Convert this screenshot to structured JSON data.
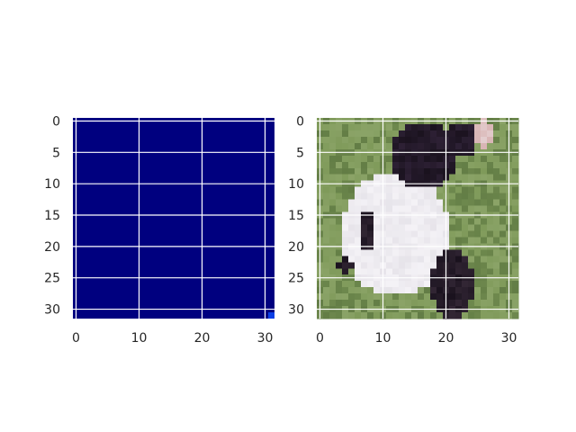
{
  "chart_data": [
    {
      "type": "heatmap",
      "title": "",
      "xlabel": "",
      "ylabel": "",
      "xlim": [
        -0.5,
        31.5
      ],
      "ylim": [
        31.5,
        -0.5
      ],
      "x_ticks": [
        "0",
        "10",
        "20",
        "30"
      ],
      "y_ticks": [
        "0",
        "5",
        "10",
        "15",
        "20",
        "25",
        "30"
      ],
      "grid": true,
      "grid_color": "#ffffff",
      "colormap": "jet",
      "fill_color": "#00007f",
      "highlight_pixel": {
        "x": 31,
        "y": 31,
        "color": "#0a3fe6"
      }
    },
    {
      "type": "heatmap",
      "title": "",
      "xlabel": "",
      "ylabel": "",
      "xlim": [
        -0.5,
        31.5
      ],
      "ylim": [
        31.5,
        -0.5
      ],
      "x_ticks": [
        "0",
        "10",
        "20",
        "30"
      ],
      "y_ticks": [
        "0",
        "5",
        "10",
        "15",
        "20",
        "25",
        "30"
      ],
      "grid": true,
      "grid_color": "#ffffff",
      "content": "photo-of-black-and-white-dog-on-grass",
      "colors": {
        "grass": "#7f9a5a",
        "grass_dark": "#56703c",
        "fur_white": "#f4f2f6",
        "fur_black": "#1a121e",
        "fur_pink": "#d8b4b4"
      }
    }
  ]
}
